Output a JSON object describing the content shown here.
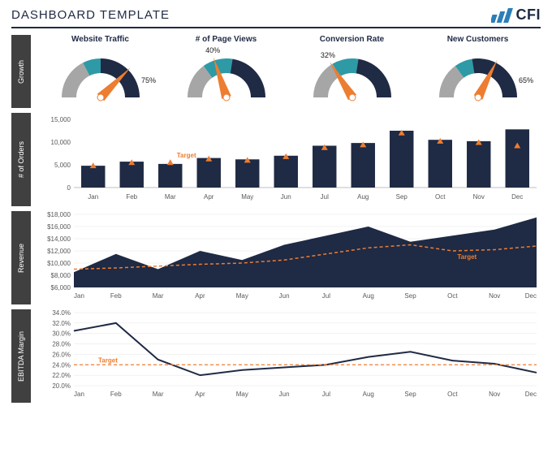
{
  "header": {
    "title": "DASHBOARD TEMPLATE",
    "logo_text": "CFI",
    "logo_bar_color": "#2a7fb8",
    "title_color": "#1f2a44"
  },
  "palette": {
    "navy": "#1f2a44",
    "teal": "#2d9aa6",
    "gray": "#a6a6a6",
    "orange": "#ed7d31",
    "side_gray": "#404040",
    "axis": "#595959",
    "grid": "#d9d9d9"
  },
  "gauges": {
    "section_label": "Growth",
    "items": [
      {
        "title": "Website Traffic",
        "value": 75,
        "label": "75%",
        "seg_gray": 35,
        "seg_teal": 15,
        "seg_navy": 50,
        "label_side": "right"
      },
      {
        "title": "# of Page Views",
        "value": 40,
        "label": "40%",
        "seg_gray": 30,
        "seg_teal": 25,
        "seg_navy": 45,
        "label_side": "top"
      },
      {
        "title": "Conversion Rate",
        "value": 32,
        "label": "32%",
        "seg_gray": 33,
        "seg_teal": 22,
        "seg_navy": 45,
        "label_side": "top"
      },
      {
        "title": "New Customers",
        "value": 65,
        "label": "65%",
        "seg_gray": 30,
        "seg_teal": 15,
        "seg_navy": 55,
        "label_side": "right"
      }
    ]
  },
  "orders": {
    "section_label": "# of Orders",
    "type": "bar",
    "categories": [
      "Jan",
      "Feb",
      "Mar",
      "Apr",
      "May",
      "Jun",
      "Jul",
      "Aug",
      "Sep",
      "Oct",
      "Nov",
      "Dec"
    ],
    "values": [
      4800,
      5700,
      5200,
      6500,
      6200,
      7000,
      9200,
      9800,
      12500,
      10500,
      10200,
      12800
    ],
    "targets": [
      4800,
      5500,
      5500,
      6300,
      6000,
      6800,
      8800,
      9400,
      12000,
      10200,
      9900,
      9200
    ],
    "target_label": "Target",
    "ylim": [
      0,
      15000
    ],
    "yticks": [
      0,
      5000,
      10000,
      15000
    ],
    "ytick_labels": [
      "0",
      "5,000",
      "10,000",
      "15,000"
    ],
    "bar_color": "#1f2a44",
    "marker_color": "#ed7d31"
  },
  "revenue": {
    "section_label": "Revenue",
    "type": "area",
    "categories": [
      "Jan",
      "Feb",
      "Mar",
      "Apr",
      "May",
      "Jun",
      "Jul",
      "Aug",
      "Sep",
      "Oct",
      "Nov",
      "Dec"
    ],
    "values": [
      8500,
      11500,
      9000,
      12000,
      10500,
      13000,
      14500,
      16000,
      13500,
      14500,
      15500,
      17500
    ],
    "targets": [
      9000,
      9200,
      9500,
      9800,
      10000,
      10500,
      11500,
      12500,
      13000,
      12000,
      12200,
      12800
    ],
    "target_label": "Target",
    "ylim": [
      6000,
      18000
    ],
    "yticks": [
      6000,
      8000,
      10000,
      12000,
      14000,
      16000,
      18000
    ],
    "ytick_labels": [
      "$6,000",
      "$8,000",
      "$10,000",
      "$12,000",
      "$14,000",
      "$16,000",
      "$18,000"
    ],
    "fill_color": "#1f2a44",
    "target_color": "#ed7d31"
  },
  "ebitda": {
    "section_label": "EBITDA Margin",
    "type": "line",
    "categories": [
      "Jan",
      "Feb",
      "Mar",
      "Apr",
      "May",
      "Jun",
      "Jul",
      "Aug",
      "Sep",
      "Oct",
      "Nov",
      "Dec"
    ],
    "values": [
      30.5,
      32.0,
      25.0,
      22.0,
      23.0,
      23.5,
      24.0,
      25.5,
      26.5,
      24.8,
      24.2,
      22.5
    ],
    "target": 24.0,
    "target_label": "Target",
    "ylim": [
      20,
      34
    ],
    "yticks": [
      20,
      22,
      24,
      26,
      28,
      30,
      32,
      34
    ],
    "ytick_labels": [
      "20.0%",
      "22.0%",
      "24.0%",
      "26.0%",
      "28.0%",
      "30.0%",
      "32.0%",
      "34.0%"
    ],
    "line_color": "#1f2a44",
    "target_color": "#ed7d31"
  }
}
